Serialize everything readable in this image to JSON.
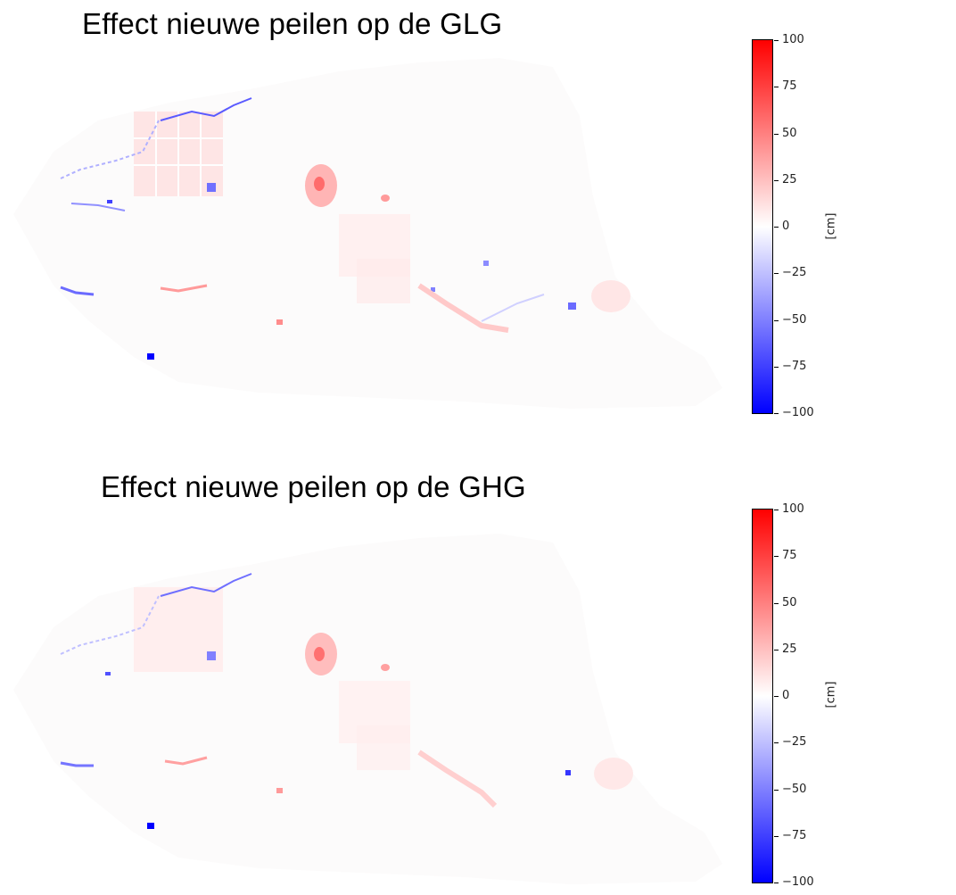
{
  "panels": [
    {
      "title": "Effect nieuwe peilen op de GLG",
      "colorbar": {
        "unit": "[cm]",
        "min": -100,
        "max": 100,
        "colors": {
          "high": "#ff0000",
          "mid": "#ffffff",
          "low": "#0000ff"
        },
        "ticks": [
          "100",
          "75",
          "50",
          "25",
          "0",
          "−25",
          "−50",
          "−75",
          "−100"
        ]
      }
    },
    {
      "title": "Effect nieuwe peilen op de GHG",
      "colorbar": {
        "unit": "[cm]",
        "min": -100,
        "max": 100,
        "colors": {
          "high": "#ff0000",
          "mid": "#ffffff",
          "low": "#0000ff"
        },
        "ticks": [
          "100",
          "75",
          "50",
          "25",
          "0",
          "−25",
          "−50",
          "−75",
          "−100"
        ]
      }
    }
  ],
  "map": {
    "background_fill": "#fdfbfb",
    "positive_color": "#ff4040",
    "negative_color": "#3030ff"
  }
}
